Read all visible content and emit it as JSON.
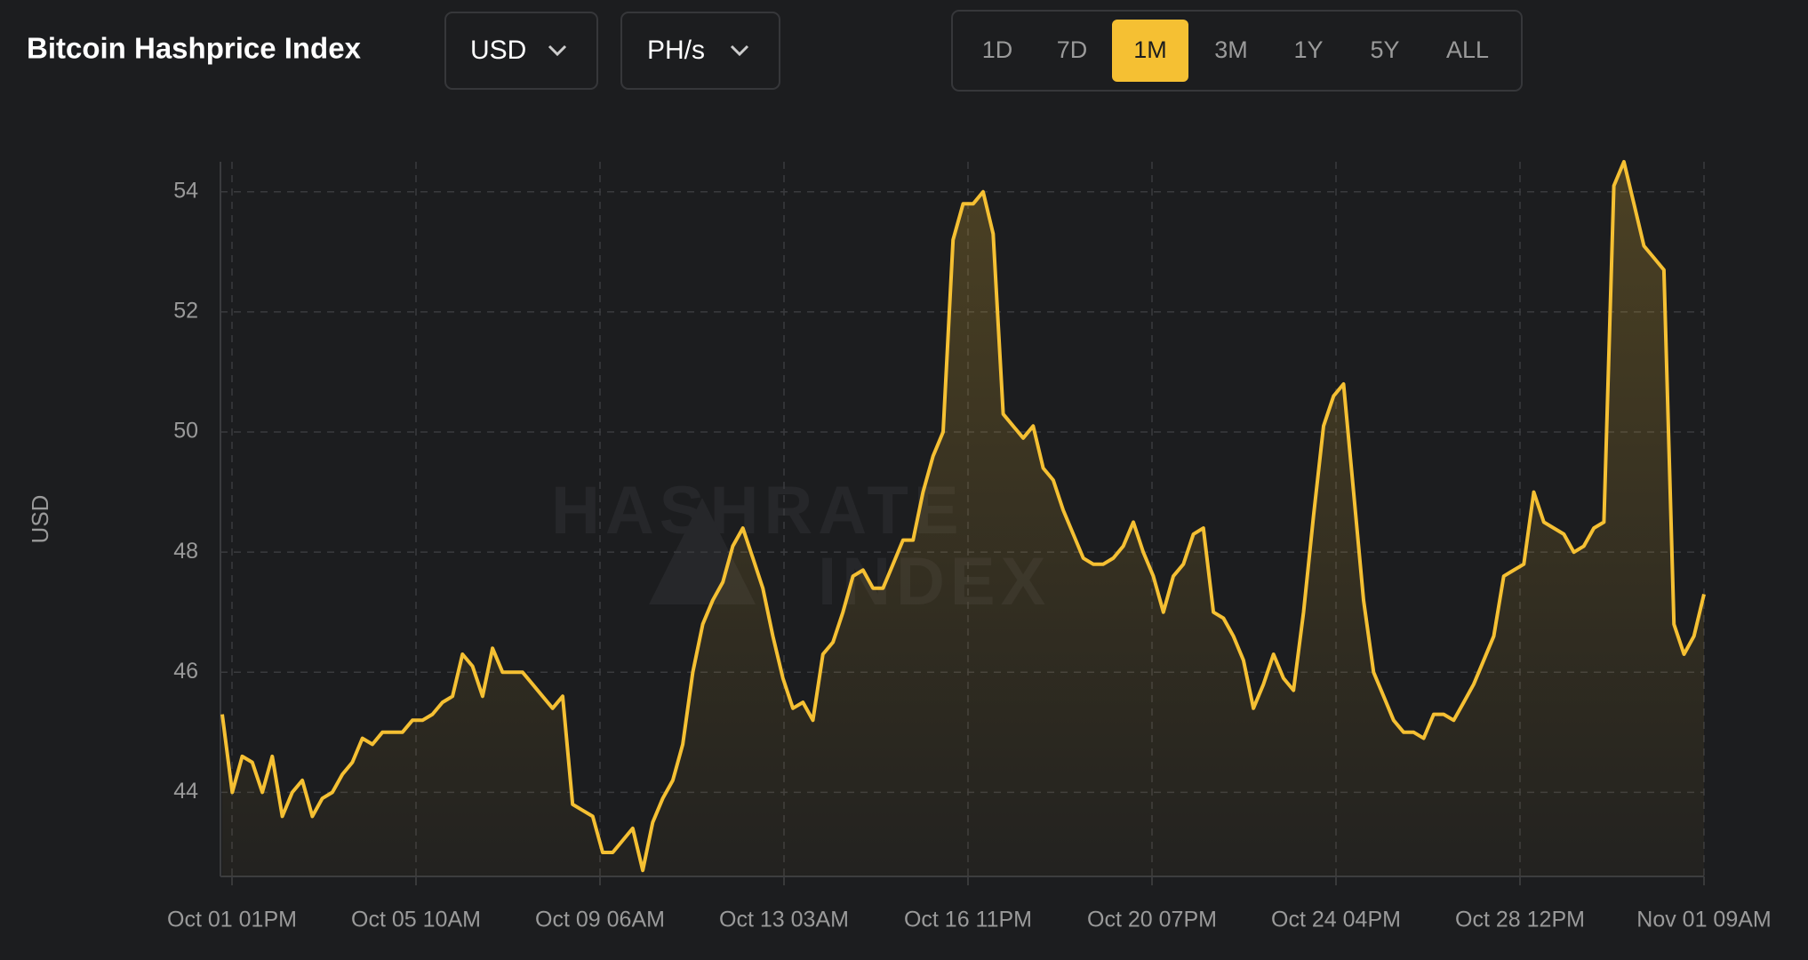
{
  "header": {
    "title": "Bitcoin Hashprice Index",
    "dropdowns": [
      "USD",
      "PH/s"
    ],
    "ranges": [
      "1D",
      "7D",
      "1M",
      "3M",
      "1Y",
      "5Y",
      "ALL"
    ],
    "active_range": "1M"
  },
  "chart_data": {
    "type": "area",
    "watermark": [
      "HASHRATE",
      "INDEX"
    ],
    "y_label": "USD",
    "color": "#f5c033",
    "ylim": [
      42.6,
      54.5
    ],
    "yticks": [
      44,
      46,
      48,
      50,
      52,
      54
    ],
    "grid": true,
    "x_labels": [
      "Oct 01 01PM",
      "Oct 05 10AM",
      "Oct 09 06AM",
      "Oct 13 03AM",
      "Oct 16 11PM",
      "Oct 20 07PM",
      "Oct 24 04PM",
      "Oct 28 12PM",
      "Nov 01 09AM"
    ],
    "values": [
      45.3,
      44.0,
      44.6,
      44.5,
      44.0,
      44.6,
      43.6,
      44.0,
      44.2,
      43.6,
      43.9,
      44.0,
      44.3,
      44.5,
      44.9,
      44.8,
      45.0,
      45.0,
      45.0,
      45.2,
      45.2,
      45.3,
      45.5,
      45.6,
      46.3,
      46.1,
      45.6,
      46.4,
      46.0,
      46.0,
      46.0,
      45.8,
      45.6,
      45.4,
      45.6,
      43.8,
      43.7,
      43.6,
      43.0,
      43.0,
      43.2,
      43.4,
      42.7,
      43.5,
      43.9,
      44.2,
      44.8,
      46.0,
      46.8,
      47.2,
      47.5,
      48.1,
      48.4,
      47.9,
      47.4,
      46.6,
      45.9,
      45.4,
      45.5,
      45.2,
      46.3,
      46.5,
      47.0,
      47.6,
      47.7,
      47.4,
      47.4,
      47.8,
      48.2,
      48.2,
      49.0,
      49.6,
      50.0,
      53.2,
      53.8,
      53.8,
      54.0,
      53.3,
      50.3,
      50.1,
      49.9,
      50.1,
      49.4,
      49.2,
      48.7,
      48.3,
      47.9,
      47.8,
      47.8,
      47.9,
      48.1,
      48.5,
      48.0,
      47.6,
      47.0,
      47.6,
      47.8,
      48.3,
      48.4,
      47.0,
      46.9,
      46.6,
      46.2,
      45.4,
      45.8,
      46.3,
      45.9,
      45.7,
      47.0,
      48.6,
      50.1,
      50.6,
      50.8,
      49.0,
      47.2,
      46.0,
      45.6,
      45.2,
      45.0,
      45.0,
      44.9,
      45.3,
      45.3,
      45.2,
      45.5,
      45.8,
      46.2,
      46.6,
      47.6,
      47.7,
      47.8,
      49.0,
      48.5,
      48.4,
      48.3,
      48.0,
      48.1,
      48.4,
      48.5,
      54.1,
      54.5,
      53.8,
      53.1,
      52.9,
      52.7,
      46.8,
      46.3,
      46.6,
      47.3
    ]
  }
}
